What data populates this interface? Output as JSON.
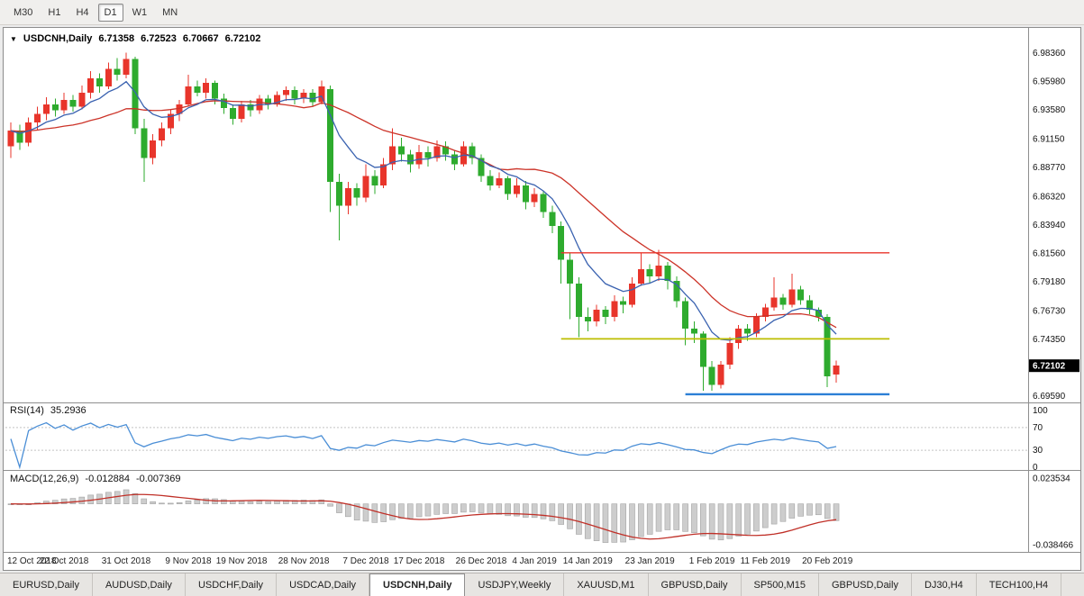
{
  "toolbar": {
    "buttons": [
      {
        "label": "M30",
        "active": false
      },
      {
        "label": "H1",
        "active": false
      },
      {
        "label": "H4",
        "active": false
      },
      {
        "label": "D1",
        "active": true
      },
      {
        "label": "W1",
        "active": false
      },
      {
        "label": "MN",
        "active": false
      }
    ]
  },
  "header": {
    "expand_icon": "▼",
    "symbol": "USDCNH,Daily",
    "open": "6.71358",
    "high": "6.72523",
    "low": "6.70667",
    "close": "6.72102"
  },
  "panels": {
    "rsi": {
      "label": "RSI(14)",
      "value": "35.2936"
    },
    "macd": {
      "label": "MACD(12,26,9)",
      "value1": "-0.012884",
      "value2": "-0.007369"
    }
  },
  "tabs": {
    "items": [
      {
        "label": "EURUSD,Daily",
        "active": false
      },
      {
        "label": "AUDUSD,Daily",
        "active": false
      },
      {
        "label": "USDCHF,Daily",
        "active": false
      },
      {
        "label": "USDCAD,Daily",
        "active": false
      },
      {
        "label": "USDCNH,Daily",
        "active": true
      },
      {
        "label": "USDJPY,Weekly",
        "active": false
      },
      {
        "label": "XAUUSD,M1",
        "active": false
      },
      {
        "label": "GBPUSD,Daily",
        "active": false
      },
      {
        "label": "SP500,M15",
        "active": false
      },
      {
        "label": "GBPUSD,Daily",
        "active": false
      },
      {
        "label": "DJ30,H4",
        "active": false
      },
      {
        "label": "TECH100,H4",
        "active": false
      }
    ]
  },
  "chart_data": {
    "type": "candlestick",
    "symbol": "USDCNH",
    "timeframe": "Daily",
    "colors": {
      "up": "#e8352b",
      "down": "#2eab2e",
      "ma_fast": "#3a62b0",
      "ma_slow": "#cc3328",
      "rsi": "#4a8ed6",
      "macd_hist": "#cdcdcd",
      "macd_hist_border": "#a3a3a3",
      "macd_signal": "#c03028"
    },
    "current_price": {
      "text": "6.72102",
      "value": 6.72102
    },
    "price_axis": {
      "labels": [
        {
          "text": "6.98360",
          "value": 6.9836
        },
        {
          "text": "6.95980",
          "value": 6.9598
        },
        {
          "text": "6.93580",
          "value": 6.9358
        },
        {
          "text": "6.91150",
          "value": 6.9115
        },
        {
          "text": "6.88770",
          "value": 6.8877
        },
        {
          "text": "6.86320",
          "value": 6.8632
        },
        {
          "text": "6.83940",
          "value": 6.8394
        },
        {
          "text": "6.81560",
          "value": 6.8156
        },
        {
          "text": "6.79180",
          "value": 6.7918
        },
        {
          "text": "6.76730",
          "value": 6.7673
        },
        {
          "text": "6.74350",
          "value": 6.7435
        },
        {
          "text": "6.69590",
          "value": 6.6959
        }
      ]
    },
    "date_labels": [
      {
        "i": 0,
        "text": "12 Oct 2018"
      },
      {
        "i": 6,
        "text": "22 Oct 2018"
      },
      {
        "i": 13,
        "text": "31 Oct 2018"
      },
      {
        "i": 20,
        "text": "9 Nov 2018"
      },
      {
        "i": 26,
        "text": "19 Nov 2018"
      },
      {
        "i": 33,
        "text": "28 Nov 2018"
      },
      {
        "i": 40,
        "text": "7 Dec 2018"
      },
      {
        "i": 46,
        "text": "17 Dec 2018"
      },
      {
        "i": 53,
        "text": "26 Dec 2018"
      },
      {
        "i": 59,
        "text": "4 Jan 2019"
      },
      {
        "i": 65,
        "text": "14 Jan 2019"
      },
      {
        "i": 72,
        "text": "23 Jan 2019"
      },
      {
        "i": 79,
        "text": "1 Feb 2019"
      },
      {
        "i": 85,
        "text": "11 Feb 2019"
      },
      {
        "i": 92,
        "text": "20 Feb 2019"
      }
    ],
    "objects": [
      {
        "name": "resistance-line-red",
        "type": "hline",
        "value": 6.8156,
        "from_i": 62,
        "to_i": 99,
        "color": "#e8352b",
        "width": 1.4
      },
      {
        "name": "support-line-yellow",
        "type": "hline",
        "value": 6.7435,
        "from_i": 62,
        "to_i": 99,
        "color": "#bcbe00",
        "width": 1.8
      },
      {
        "name": "support-line-blue",
        "type": "hline",
        "value": 6.697,
        "from_i": 76,
        "to_i": 99,
        "color": "#2c7fd6",
        "width": 2.4
      }
    ],
    "indicators": {
      "ma_fast_period": 8,
      "ma_slow_period": 20,
      "rsi": {
        "period": 14,
        "value": 35.2936,
        "levels": [
          {
            "text": "100",
            "value": 100
          },
          {
            "text": "70",
            "value": 70
          },
          {
            "text": "30",
            "value": 30
          },
          {
            "text": "0",
            "value": 0
          }
        ],
        "dashed": [
          70,
          30
        ]
      },
      "macd": {
        "fast": 12,
        "slow": 26,
        "signal": 9,
        "value_main": -0.012884,
        "value_signal": -0.007369,
        "axis_labels": [
          {
            "text": "0.023534",
            "value": 0.023534
          },
          {
            "text": "-0.038466",
            "value": -0.038466
          }
        ]
      }
    },
    "candles": [
      [
        6.905,
        6.925,
        6.895,
        6.918
      ],
      [
        6.918,
        6.923,
        6.902,
        6.908
      ],
      [
        6.908,
        6.929,
        6.905,
        6.925
      ],
      [
        6.925,
        6.938,
        6.918,
        6.932
      ],
      [
        6.932,
        6.946,
        6.927,
        6.94
      ],
      [
        6.94,
        6.945,
        6.93,
        6.935
      ],
      [
        6.935,
        6.95,
        6.932,
        6.944
      ],
      [
        6.944,
        6.948,
        6.934,
        6.938
      ],
      [
        6.938,
        6.956,
        6.936,
        6.95
      ],
      [
        6.95,
        6.968,
        6.945,
        6.962
      ],
      [
        6.962,
        6.966,
        6.95,
        6.955
      ],
      [
        6.955,
        6.975,
        6.953,
        6.97
      ],
      [
        6.97,
        6.979,
        6.96,
        6.965
      ],
      [
        6.965,
        6.9836,
        6.962,
        6.978
      ],
      [
        6.978,
        6.98,
        6.915,
        6.92
      ],
      [
        6.92,
        6.928,
        6.875,
        6.895
      ],
      [
        6.895,
        6.915,
        6.89,
        6.91
      ],
      [
        6.91,
        6.925,
        6.905,
        6.92
      ],
      [
        6.92,
        6.936,
        6.915,
        6.932
      ],
      [
        6.932,
        6.944,
        6.926,
        6.94
      ],
      [
        6.94,
        6.965,
        6.938,
        6.955
      ],
      [
        6.955,
        6.96,
        6.947,
        6.95
      ],
      [
        6.95,
        6.962,
        6.945,
        6.958
      ],
      [
        6.958,
        6.96,
        6.94,
        6.945
      ],
      [
        6.945,
        6.949,
        6.932,
        6.937
      ],
      [
        6.937,
        6.94,
        6.923,
        6.928
      ],
      [
        6.928,
        6.943,
        6.925,
        6.94
      ],
      [
        6.94,
        6.944,
        6.93,
        6.935
      ],
      [
        6.935,
        6.948,
        6.932,
        6.945
      ],
      [
        6.945,
        6.948,
        6.936,
        6.94
      ],
      [
        6.94,
        6.951,
        6.938,
        6.948
      ],
      [
        6.948,
        6.955,
        6.943,
        6.952
      ],
      [
        6.952,
        6.955,
        6.94,
        6.945
      ],
      [
        6.945,
        6.953,
        6.941,
        6.95
      ],
      [
        6.95,
        6.953,
        6.938,
        6.942
      ],
      [
        6.942,
        6.96,
        6.94,
        6.955
      ],
      [
        6.953,
        6.956,
        6.85,
        6.875
      ],
      [
        6.875,
        6.882,
        6.826,
        6.855
      ],
      [
        6.855,
        6.875,
        6.848,
        6.87
      ],
      [
        6.87,
        6.874,
        6.855,
        6.862
      ],
      [
        6.862,
        6.89,
        6.858,
        6.88
      ],
      [
        6.88,
        6.885,
        6.865,
        6.872
      ],
      [
        6.872,
        6.895,
        6.87,
        6.89
      ],
      [
        6.89,
        6.92,
        6.885,
        6.905
      ],
      [
        6.905,
        6.912,
        6.892,
        6.898
      ],
      [
        6.898,
        6.902,
        6.883,
        6.89
      ],
      [
        6.89,
        6.906,
        6.886,
        6.9
      ],
      [
        6.9,
        6.905,
        6.888,
        6.895
      ],
      [
        6.895,
        6.91,
        6.892,
        6.905
      ],
      [
        6.905,
        6.909,
        6.893,
        6.898
      ],
      [
        6.898,
        6.902,
        6.885,
        6.89
      ],
      [
        6.89,
        6.909,
        6.888,
        6.905
      ],
      [
        6.905,
        6.908,
        6.89,
        6.895
      ],
      [
        6.895,
        6.898,
        6.875,
        6.88
      ],
      [
        6.88,
        6.885,
        6.868,
        6.872
      ],
      [
        6.872,
        6.883,
        6.87,
        6.878
      ],
      [
        6.878,
        6.88,
        6.86,
        6.865
      ],
      [
        6.865,
        6.878,
        6.862,
        6.872
      ],
      [
        6.872,
        6.876,
        6.852,
        6.858
      ],
      [
        6.858,
        6.87,
        6.854,
        6.865
      ],
      [
        6.865,
        6.868,
        6.845,
        6.85
      ],
      [
        6.85,
        6.855,
        6.832,
        6.838
      ],
      [
        6.838,
        6.842,
        6.79,
        6.81
      ],
      [
        6.81,
        6.815,
        6.76,
        6.79
      ],
      [
        6.79,
        6.795,
        6.745,
        6.762
      ],
      [
        6.762,
        6.77,
        6.75,
        6.758
      ],
      [
        6.758,
        6.772,
        6.754,
        6.768
      ],
      [
        6.768,
        6.771,
        6.756,
        6.762
      ],
      [
        6.762,
        6.78,
        6.758,
        6.775
      ],
      [
        6.775,
        6.779,
        6.765,
        6.772
      ],
      [
        6.772,
        6.795,
        6.77,
        6.79
      ],
      [
        6.79,
        6.815,
        6.788,
        6.802
      ],
      [
        6.802,
        6.806,
        6.79,
        6.796
      ],
      [
        6.796,
        6.818,
        6.792,
        6.805
      ],
      [
        6.805,
        6.808,
        6.785,
        6.792
      ],
      [
        6.792,
        6.796,
        6.77,
        6.775
      ],
      [
        6.775,
        6.778,
        6.738,
        6.752
      ],
      [
        6.752,
        6.758,
        6.74,
        6.748
      ],
      [
        6.748,
        6.75,
        6.7,
        6.72
      ],
      [
        6.72,
        6.725,
        6.7,
        6.705
      ],
      [
        6.705,
        6.725,
        6.702,
        6.722
      ],
      [
        6.722,
        6.745,
        6.718,
        6.74
      ],
      [
        6.74,
        6.755,
        6.735,
        6.752
      ],
      [
        6.752,
        6.756,
        6.742,
        6.748
      ],
      [
        6.748,
        6.765,
        6.745,
        6.762
      ],
      [
        6.762,
        6.773,
        6.758,
        6.77
      ],
      [
        6.77,
        6.795,
        6.767,
        6.778
      ],
      [
        6.778,
        6.781,
        6.768,
        6.772
      ],
      [
        6.772,
        6.798,
        6.77,
        6.785
      ],
      [
        6.785,
        6.788,
        6.772,
        6.776
      ],
      [
        6.776,
        6.78,
        6.764,
        6.768
      ],
      [
        6.768,
        6.77,
        6.758,
        6.762
      ],
      [
        6.762,
        6.764,
        6.703,
        6.712
      ],
      [
        6.71358,
        6.72523,
        6.70667,
        6.72102
      ]
    ]
  }
}
